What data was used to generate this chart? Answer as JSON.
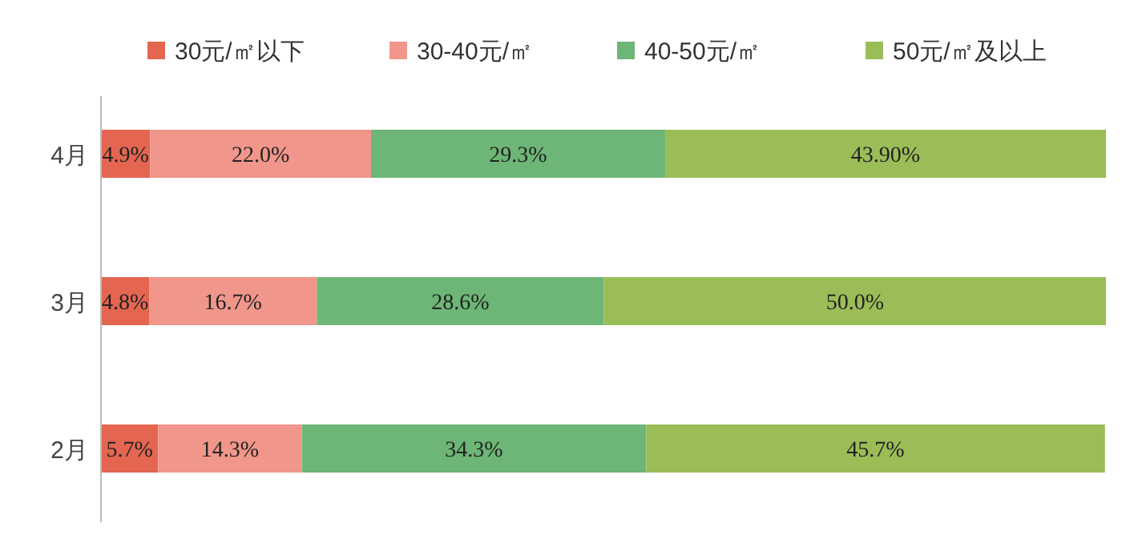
{
  "chart_data": {
    "type": "bar",
    "orientation": "horizontal",
    "stacked": true,
    "legend": "top",
    "categories": [
      "4月",
      "3月",
      "2月"
    ],
    "series": [
      {
        "name": "30元/㎡以下",
        "color": "#e46651",
        "values": [
          4.9,
          4.8,
          5.7
        ],
        "value_labels": [
          "4.9%",
          "4.8%",
          "5.7%"
        ]
      },
      {
        "name": "30-40元/㎡",
        "color": "#f1968a",
        "values": [
          22.0,
          16.7,
          14.3
        ],
        "value_labels": [
          "22.0%",
          "16.7%",
          "14.3%"
        ]
      },
      {
        "name": "40-50元/㎡",
        "color": "#6db677",
        "values": [
          29.3,
          28.6,
          34.3
        ],
        "value_labels": [
          "29.3%",
          "28.6%",
          "34.3%"
        ]
      },
      {
        "name": "50元/㎡及以上",
        "color": "#9bbd58",
        "values": [
          43.9,
          50.0,
          45.7
        ],
        "value_labels": [
          "43.90%",
          "50.0%",
          "45.7%"
        ]
      }
    ]
  }
}
